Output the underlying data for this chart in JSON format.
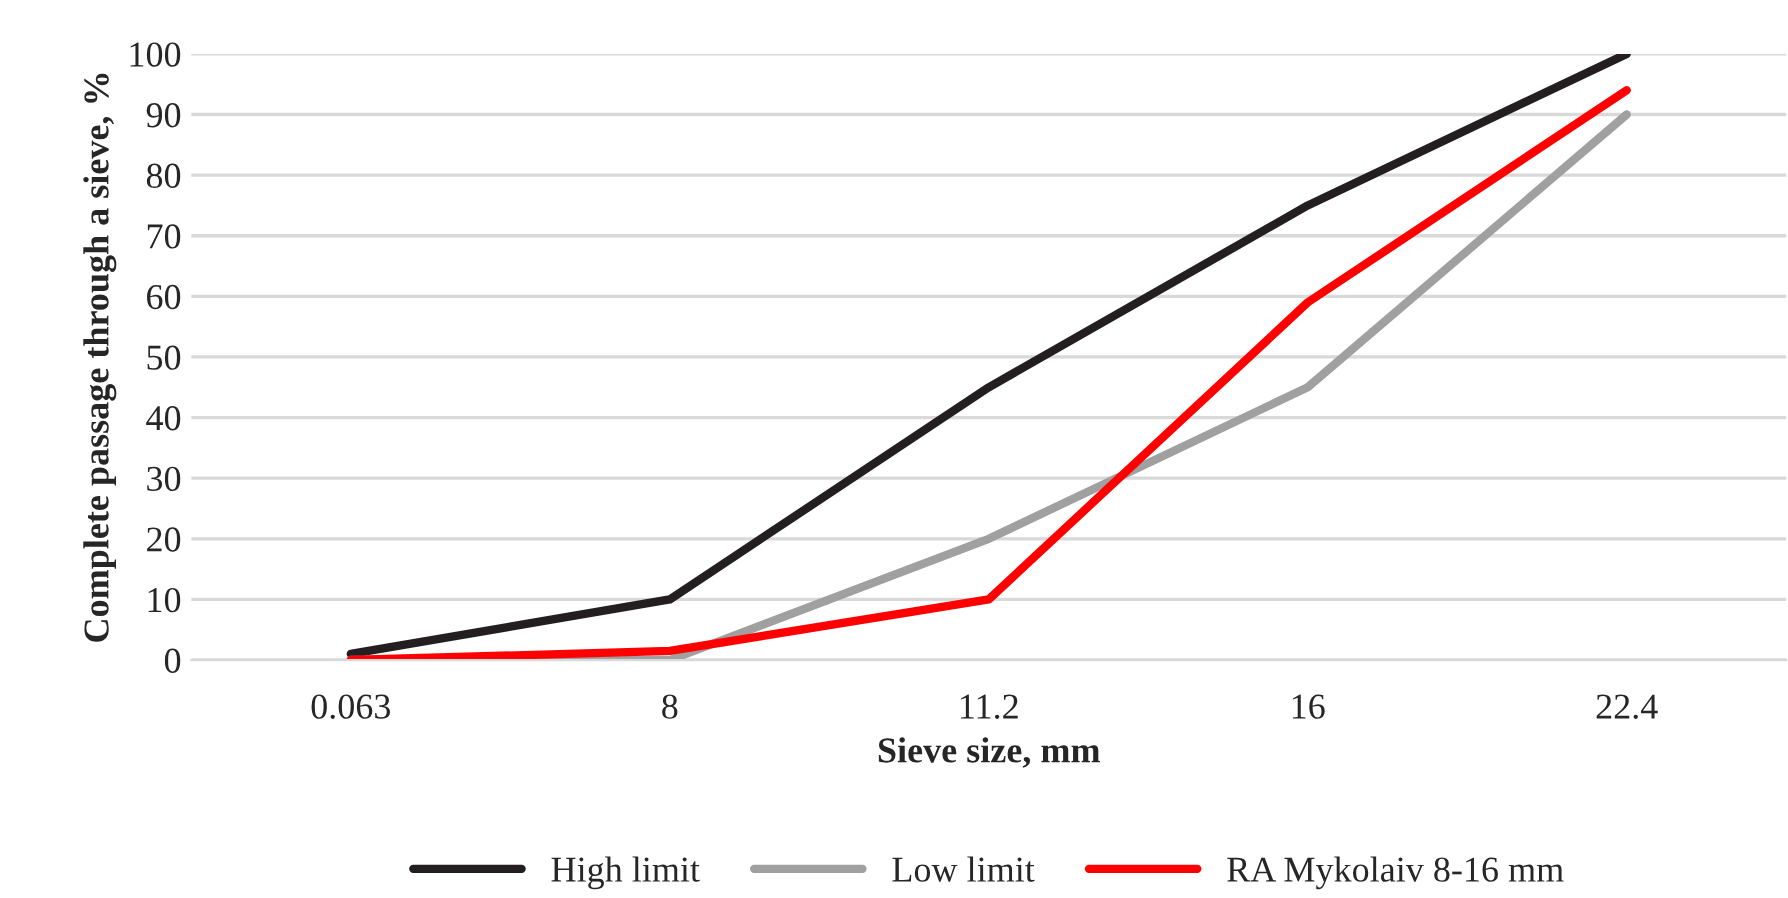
{
  "chart_data": {
    "type": "line",
    "xlabel": "Sieve size, mm",
    "ylabel": "Complete passage through a sieve, %",
    "categories": [
      "0.063",
      "8",
      "11.2",
      "16",
      "22.4"
    ],
    "series": [
      {
        "name": "High limit",
        "color": "#231f20",
        "values": [
          1,
          10,
          45,
          75,
          100
        ]
      },
      {
        "name": "Low limit",
        "color": "#a0a0a0",
        "values": [
          0,
          0,
          20,
          45,
          90
        ]
      },
      {
        "name": "RA Mykolaiv 8-16 mm",
        "color": "#ff0000",
        "values": [
          0,
          1.5,
          10,
          59,
          94
        ]
      }
    ],
    "ylim": [
      0,
      100
    ],
    "yticks": [
      0,
      10,
      20,
      30,
      40,
      50,
      60,
      70,
      80,
      90,
      100
    ],
    "grid": "y",
    "legend": "bottom",
    "marker": "none",
    "line_style": "solid"
  }
}
